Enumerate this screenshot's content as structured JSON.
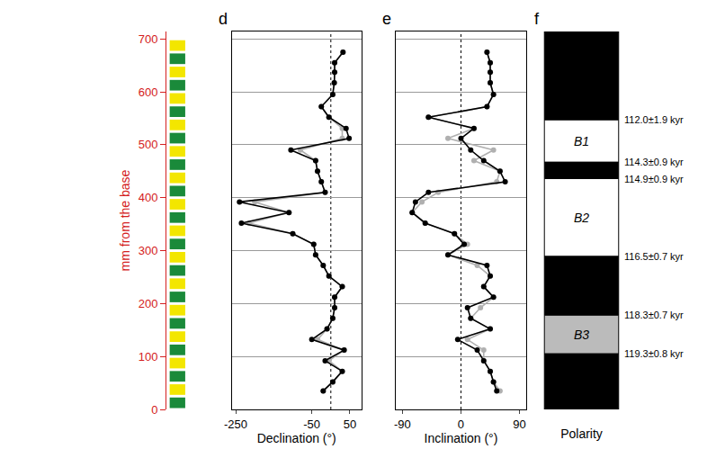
{
  "chart_data": [
    {
      "type": "axis",
      "ylabel": "mm from the base",
      "ylim": [
        0,
        714
      ],
      "yticks": [
        0,
        100,
        200,
        300,
        400,
        500,
        600,
        700
      ],
      "color": "#d42020"
    },
    {
      "type": "line",
      "panel": "d",
      "xlabel": "Declination (°)",
      "xlim": [
        -260,
        80
      ],
      "xticks": [
        -250,
        -50,
        50
      ],
      "reference_x": 0,
      "grid": true,
      "tick_labels": "x",
      "series": [
        {
          "color": "#b0b0b0",
          "marker": "circle",
          "line_style": "solid",
          "x": [
            32,
            10,
            10,
            9,
            5,
            -25,
            -5,
            30,
            30,
            -80,
            -40,
            -35,
            -25,
            -15,
            -200,
            -110,
            -215,
            -100,
            -45,
            -40,
            -20,
            -5,
            30,
            10,
            10,
            5,
            -10,
            -35,
            35,
            -5,
            30,
            5,
            -20
          ],
          "y": [
            675,
            655,
            637,
            617,
            595,
            572,
            552,
            531,
            512,
            490,
            470,
            450,
            430,
            410,
            392,
            372,
            352,
            332,
            312,
            292,
            272,
            252,
            232,
            212,
            192,
            172,
            152,
            132,
            112,
            92,
            72,
            52,
            35
          ]
        },
        {
          "color": "#000000",
          "marker": "circle",
          "line_style": "solid",
          "x": [
            32,
            10,
            10,
            9,
            5,
            -25,
            -5,
            40,
            48,
            -105,
            -40,
            -35,
            -25,
            -15,
            -240,
            -110,
            -235,
            -100,
            -45,
            -40,
            -20,
            -5,
            30,
            10,
            10,
            5,
            -10,
            -50,
            35,
            -15,
            30,
            5,
            -20
          ],
          "y": [
            675,
            655,
            637,
            617,
            595,
            572,
            552,
            531,
            512,
            490,
            470,
            450,
            430,
            410,
            392,
            372,
            352,
            332,
            312,
            292,
            272,
            252,
            232,
            212,
            192,
            172,
            152,
            132,
            112,
            92,
            72,
            52,
            35
          ]
        }
      ]
    },
    {
      "type": "line",
      "panel": "e",
      "xlabel": "Inclination (°)",
      "xlim": [
        -100,
        100
      ],
      "xticks": [
        -90,
        0,
        90
      ],
      "reference_x": 0,
      "grid": true,
      "tick_labels": "x",
      "series": [
        {
          "color": "#b0b0b0",
          "marker": "circle",
          "line_style": "solid",
          "x": [
            40,
            45,
            45,
            45,
            50,
            40,
            -50,
            20,
            -20,
            50,
            20,
            60,
            55,
            -35,
            -60,
            -75,
            -55,
            -10,
            10,
            -20,
            25,
            45,
            35,
            50,
            30,
            15,
            45,
            10,
            35,
            35,
            45,
            50,
            60
          ],
          "y": [
            675,
            655,
            637,
            617,
            595,
            572,
            552,
            531,
            512,
            490,
            470,
            450,
            430,
            410,
            392,
            372,
            352,
            332,
            312,
            292,
            272,
            252,
            232,
            212,
            192,
            172,
            152,
            132,
            112,
            92,
            72,
            52,
            35
          ]
        },
        {
          "color": "#000000",
          "marker": "circle",
          "line_style": "solid",
          "x": [
            40,
            45,
            45,
            45,
            50,
            40,
            -50,
            20,
            0,
            15,
            35,
            60,
            68,
            -50,
            -70,
            -75,
            -55,
            -10,
            5,
            -20,
            40,
            45,
            35,
            50,
            10,
            15,
            45,
            -5,
            25,
            35,
            45,
            50,
            55
          ],
          "y": [
            675,
            655,
            637,
            617,
            595,
            572,
            552,
            531,
            512,
            490,
            470,
            450,
            430,
            410,
            392,
            372,
            352,
            332,
            312,
            292,
            272,
            252,
            232,
            212,
            192,
            172,
            152,
            132,
            112,
            92,
            72,
            52,
            35
          ]
        }
      ]
    },
    {
      "type": "polarity",
      "panel": "f",
      "xlabel": "Polarity",
      "tick_labels": false,
      "intervals": [
        {
          "from": 547,
          "to": 714,
          "color": "#000000"
        },
        {
          "from": 467,
          "to": 547,
          "color": "#ffffff",
          "label": "B1"
        },
        {
          "from": 436,
          "to": 467,
          "color": "#000000"
        },
        {
          "from": 289,
          "to": 436,
          "color": "#ffffff",
          "label": "B2"
        },
        {
          "from": 178,
          "to": 289,
          "color": "#000000"
        },
        {
          "from": 105,
          "to": 178,
          "color": "#bbbbbb",
          "label": "B3"
        },
        {
          "from": 0,
          "to": 105,
          "color": "#000000"
        }
      ],
      "boundaries": [
        {
          "value": 547,
          "label": "112.0±1.9 kyr"
        },
        {
          "value": 467,
          "label": "114.3±0.9 kyr"
        },
        {
          "value": 436,
          "label": "114.9±0.9 kyr"
        },
        {
          "value": 289,
          "label": "116.5±0.7 kyr"
        },
        {
          "value": 178,
          "label": "118.3±0.7 kyr"
        },
        {
          "value": 105,
          "label": "119.3±0.8 kyr"
        }
      ]
    }
  ]
}
